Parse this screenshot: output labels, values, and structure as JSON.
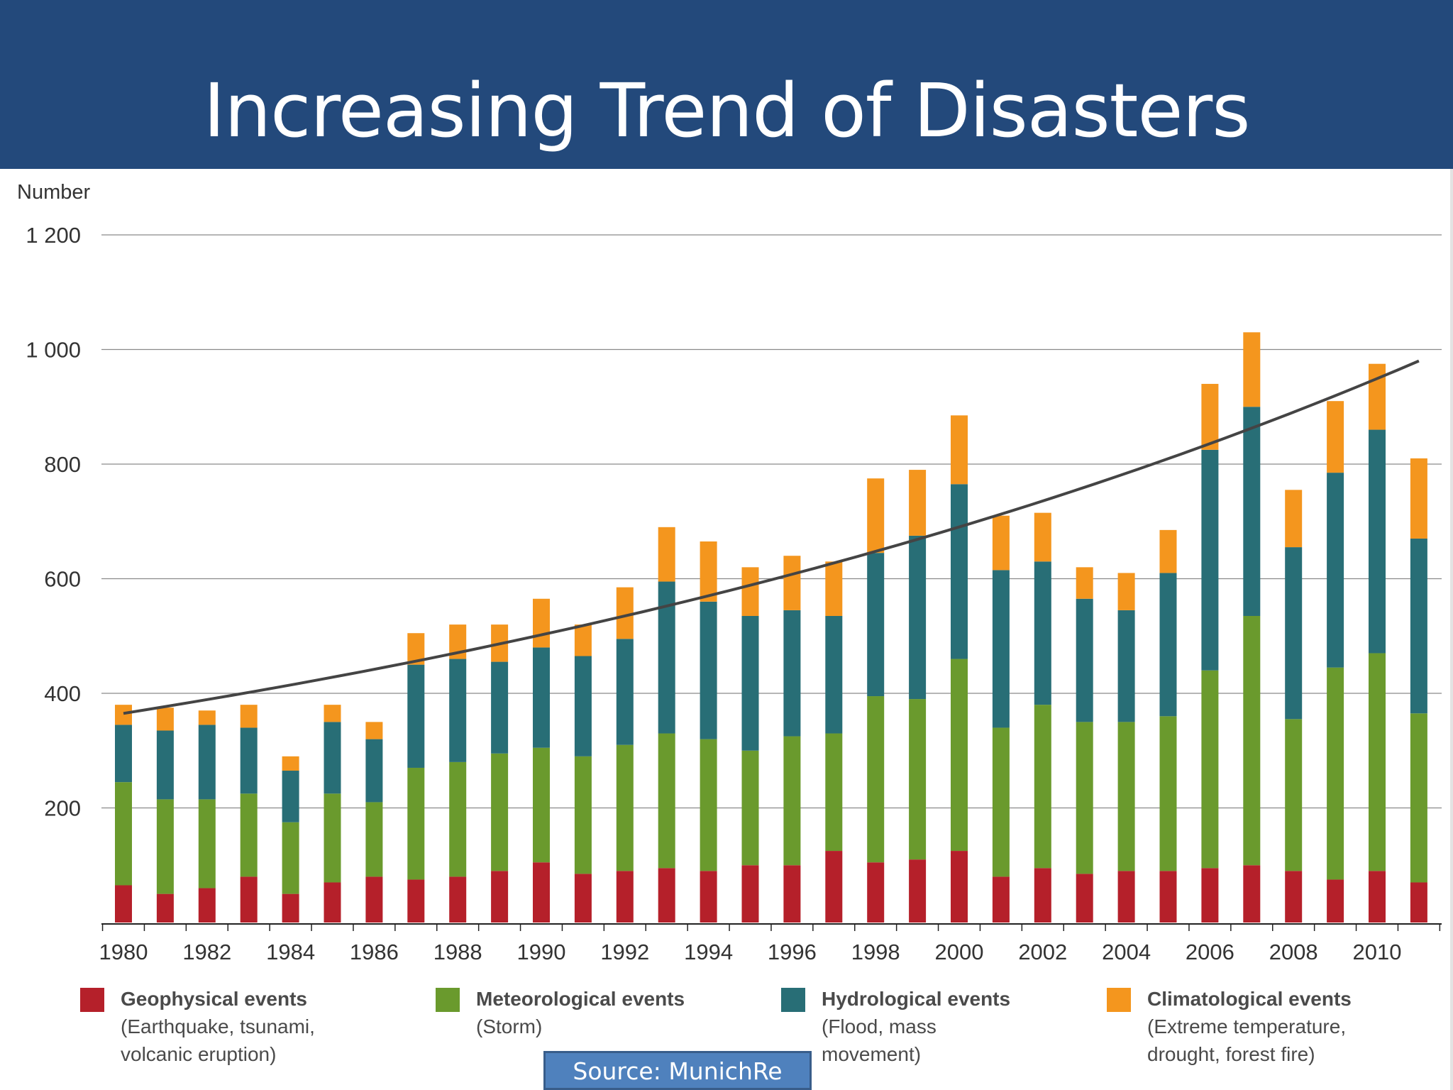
{
  "slide": {
    "title": "Increasing Trend of Disasters",
    "source": "Source: MunichRe"
  },
  "chart_data": {
    "type": "bar",
    "stacked": true,
    "ylabel": "Number",
    "ylim": [
      0,
      1200
    ],
    "yticks": [
      200,
      400,
      600,
      800,
      1000,
      1200
    ],
    "ytick_labels": [
      "200",
      "400",
      "600",
      "800",
      "1 000",
      "1 200"
    ],
    "xtick_labels": [
      "1980",
      "1982",
      "1984",
      "1986",
      "1988",
      "1990",
      "1992",
      "1994",
      "1996",
      "1998",
      "2000",
      "2002",
      "2004",
      "2006",
      "2008",
      "2010"
    ],
    "grid": true,
    "categories": [
      1980,
      1981,
      1982,
      1983,
      1984,
      1985,
      1986,
      1987,
      1988,
      1989,
      1990,
      1991,
      1992,
      1993,
      1994,
      1995,
      1996,
      1997,
      1998,
      1999,
      2000,
      2001,
      2002,
      2003,
      2004,
      2005,
      2006,
      2007,
      2008,
      2009,
      2010,
      2011
    ],
    "series": [
      {
        "name": "Geophysical events",
        "color": "#b5202a",
        "values": [
          65,
          50,
          60,
          80,
          50,
          70,
          80,
          75,
          80,
          90,
          105,
          85,
          90,
          95,
          90,
          100,
          100,
          125,
          105,
          110,
          125,
          80,
          95,
          85,
          90,
          90,
          95,
          100,
          90,
          75,
          90,
          70
        ]
      },
      {
        "name": "Meteorological events",
        "color": "#6a9a2d",
        "values": [
          180,
          165,
          155,
          145,
          125,
          155,
          130,
          195,
          200,
          205,
          200,
          205,
          220,
          235,
          230,
          200,
          225,
          205,
          290,
          280,
          335,
          260,
          285,
          265,
          260,
          270,
          345,
          435,
          265,
          370,
          380,
          295
        ]
      },
      {
        "name": "Hydrological events",
        "color": "#286e76",
        "values": [
          100,
          120,
          130,
          115,
          90,
          125,
          110,
          180,
          180,
          160,
          175,
          175,
          185,
          265,
          240,
          235,
          220,
          205,
          250,
          285,
          305,
          275,
          250,
          215,
          195,
          250,
          385,
          365,
          300,
          340,
          390,
          305
        ]
      },
      {
        "name": "Climatological events",
        "color": "#f4961e",
        "values": [
          35,
          40,
          25,
          40,
          25,
          30,
          30,
          55,
          60,
          65,
          85,
          55,
          90,
          95,
          105,
          85,
          95,
          95,
          130,
          115,
          120,
          95,
          85,
          55,
          65,
          75,
          115,
          130,
          100,
          125,
          115,
          140
        ]
      }
    ],
    "trend": {
      "type": "exponential",
      "from": {
        "x": 1980,
        "y": 365
      },
      "to": {
        "x": 2011,
        "y": 980
      }
    },
    "legend": {
      "position": "bottom",
      "items": [
        {
          "name": "Geophysical events",
          "description_lines": [
            "(Earthquake, tsunami,",
            "volcanic eruption)"
          ]
        },
        {
          "name": "Meteorological events",
          "description_lines": [
            "(Storm)"
          ]
        },
        {
          "name": "Hydrological events",
          "description_lines": [
            "(Flood, mass",
            "movement)"
          ]
        },
        {
          "name": "Climatological events",
          "description_lines": [
            "(Extreme temperature,",
            "drought, forest fire)"
          ]
        }
      ]
    }
  }
}
